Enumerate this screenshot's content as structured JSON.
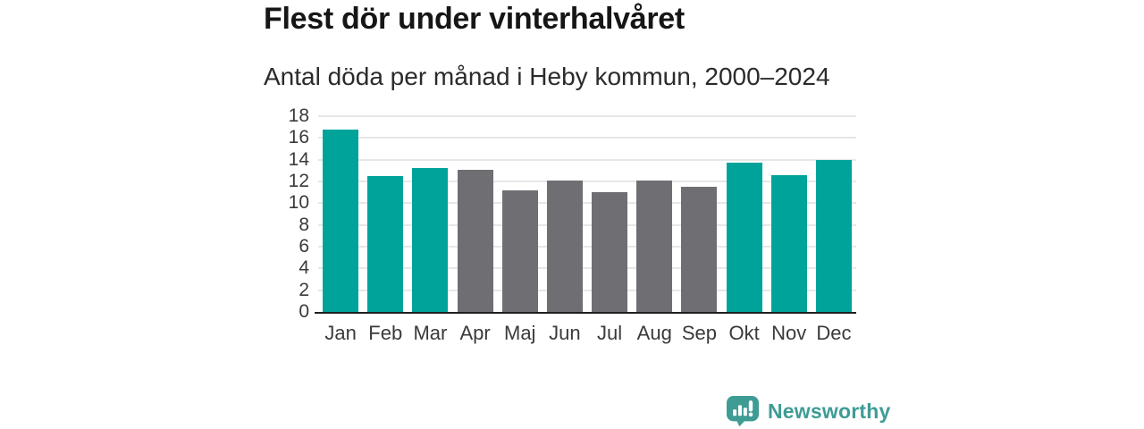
{
  "header": {
    "title": "Flest dör under vinterhalvåret",
    "subtitle": "Antal döda per månad i Heby kommun, 2000–2024"
  },
  "branding": {
    "name": "Newsworthy",
    "icon": "bar-chart-speech-bubble-icon",
    "color": "#3e9c95"
  },
  "colors": {
    "highlight_bar": "#00a39a",
    "muted_bar": "#6f6e73",
    "gridline": "#e7e7e7",
    "axis_line": "#1f1f1f",
    "title_text": "#161616",
    "subtitle_text": "#2b2b2b",
    "tick_text": "#3a3a3a"
  },
  "chart_data": {
    "type": "bar",
    "title": "Flest dör under vinterhalvåret",
    "subtitle": "Antal döda per månad i Heby kommun, 2000–2024",
    "categories": [
      "Jan",
      "Feb",
      "Mar",
      "Apr",
      "Maj",
      "Jun",
      "Jul",
      "Aug",
      "Sep",
      "Okt",
      "Nov",
      "Dec"
    ],
    "values": [
      16.8,
      12.5,
      13.2,
      13.1,
      11.2,
      12.1,
      11.0,
      12.1,
      11.5,
      13.7,
      12.6,
      14.0
    ],
    "highlighted": [
      true,
      true,
      true,
      false,
      false,
      false,
      false,
      false,
      false,
      true,
      true,
      true
    ],
    "xlabel": "",
    "ylabel": "",
    "ylim": [
      0,
      18
    ],
    "yticks": [
      0,
      2,
      4,
      6,
      8,
      10,
      12,
      14,
      16,
      18
    ],
    "grid": true,
    "legend": false
  }
}
